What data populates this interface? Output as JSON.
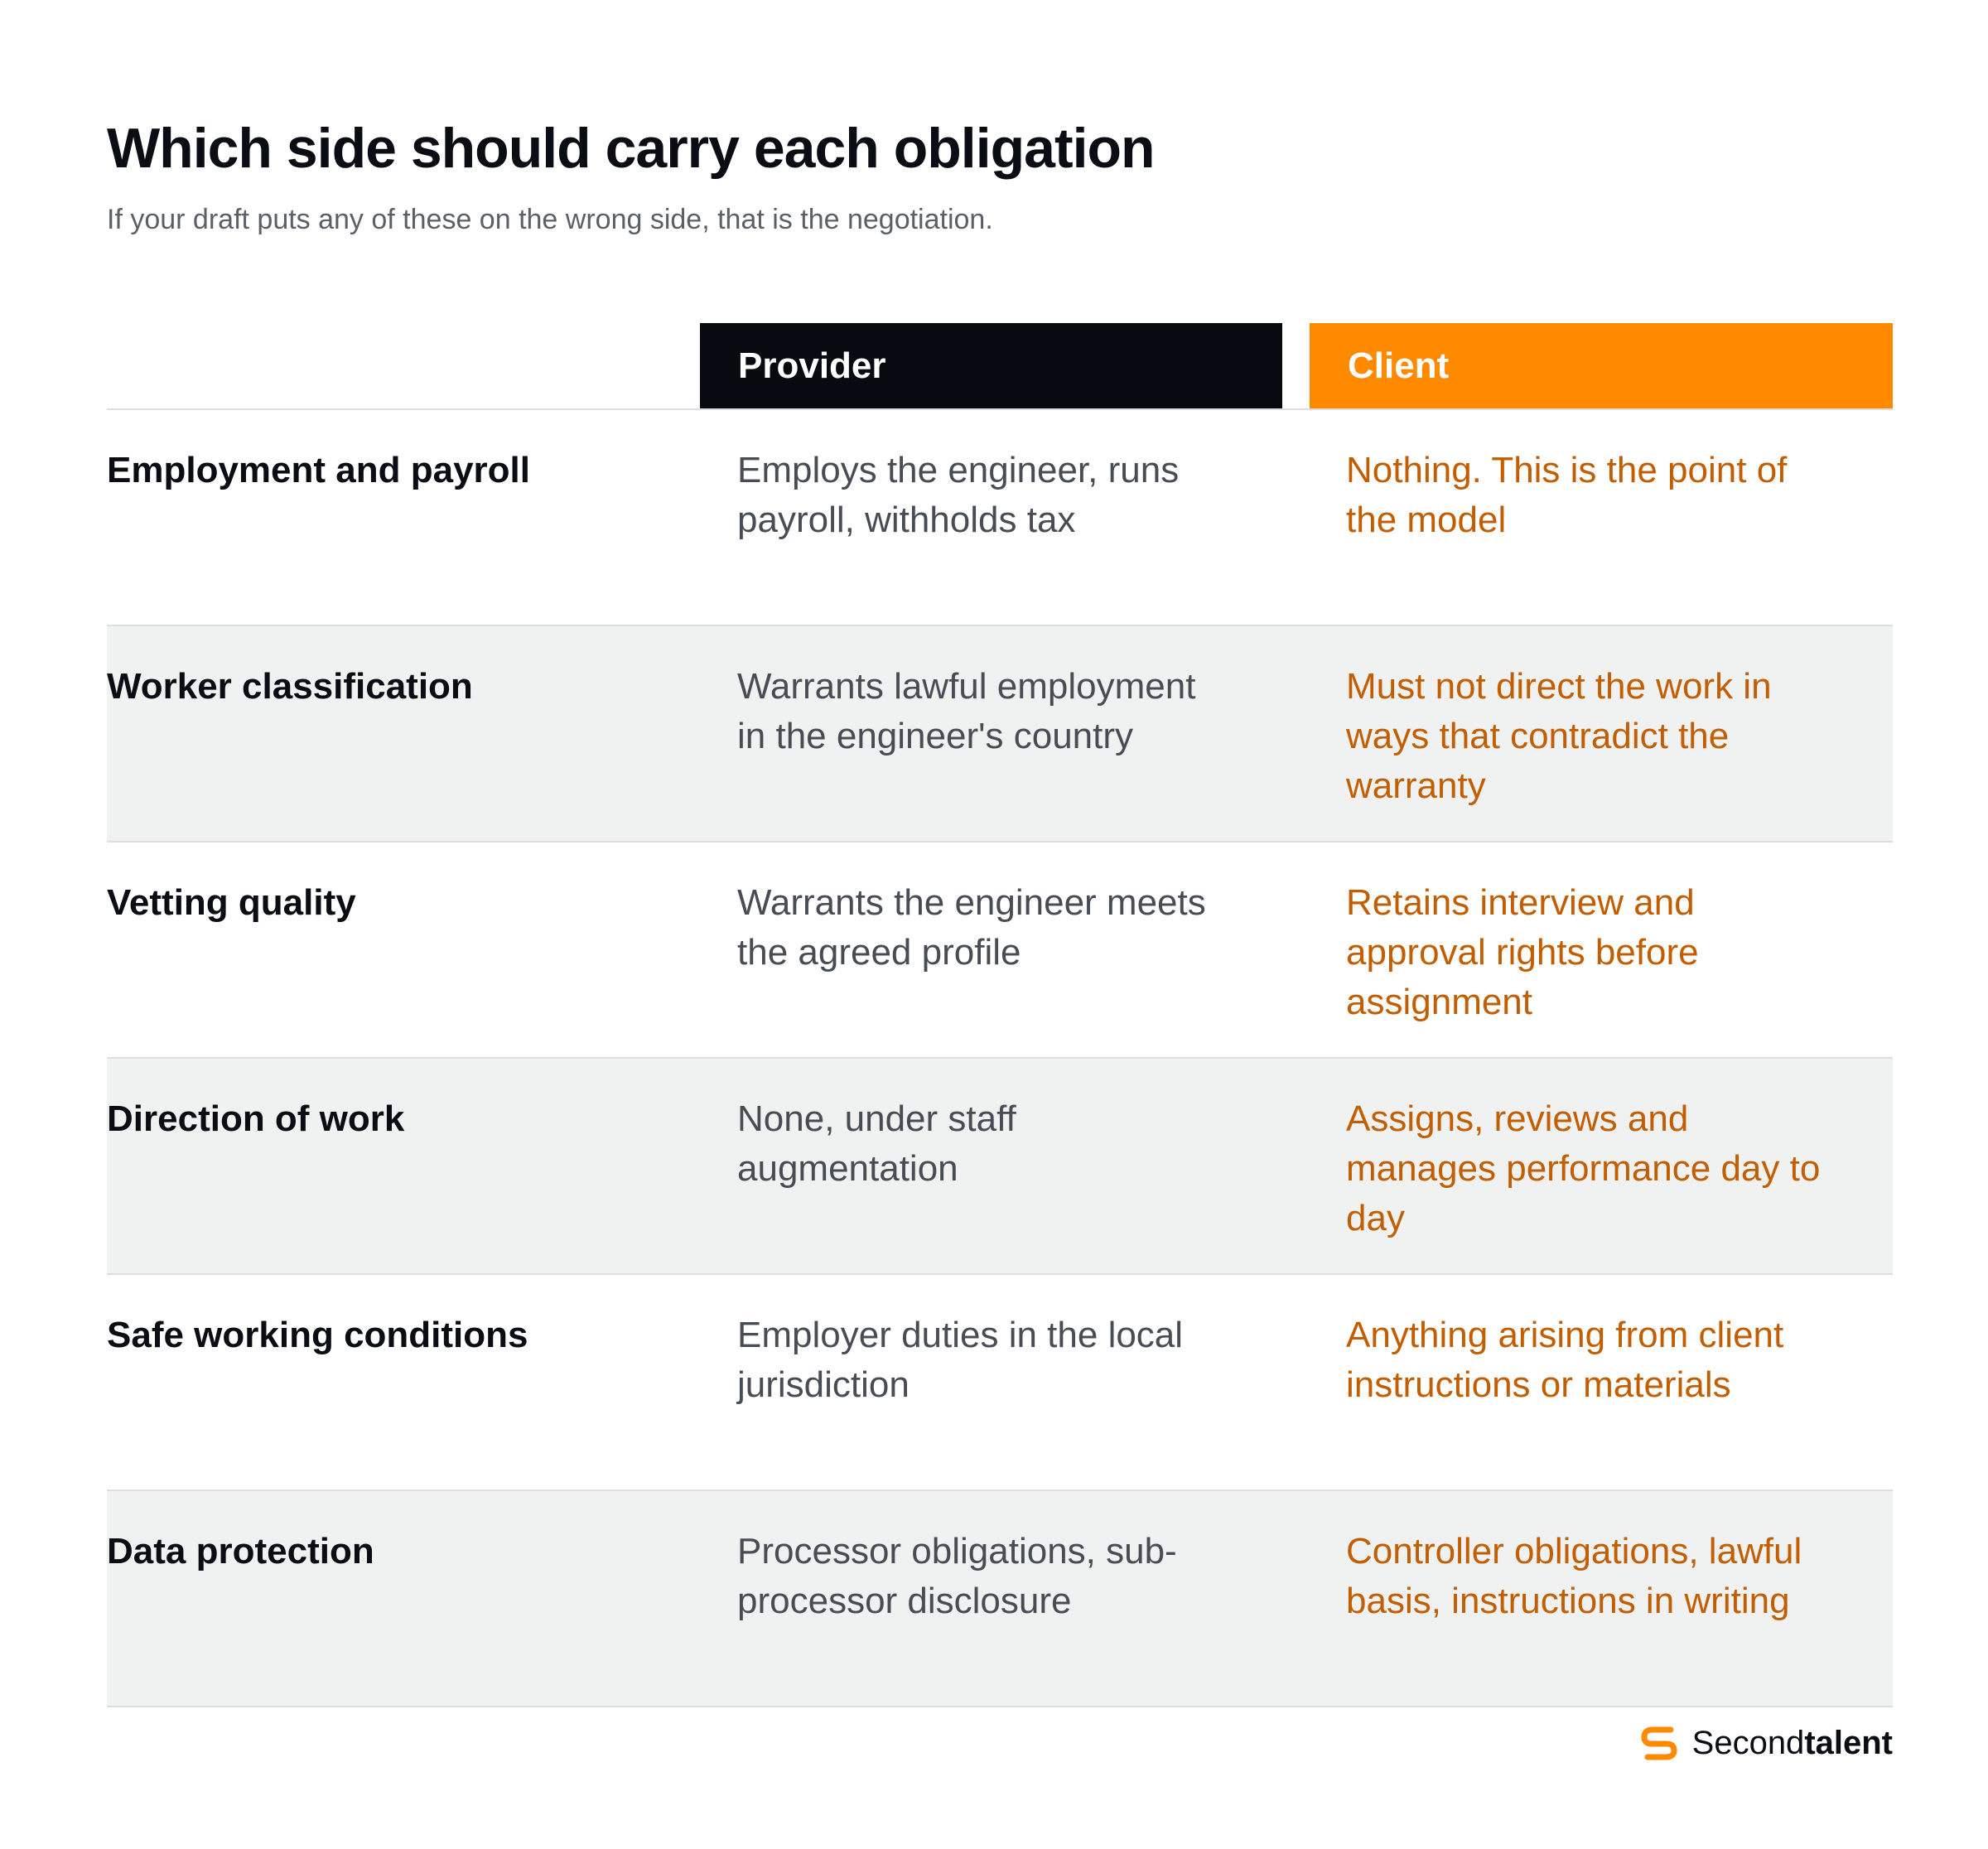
{
  "title": "Which side should carry each obligation",
  "subtitle": "If your draft puts any of these on the wrong side, that is the negotiation.",
  "columns": {
    "provider": "Provider",
    "client": "Client"
  },
  "rows": [
    {
      "label": "Employment and payroll",
      "provider": "Employs the engineer, runs payroll, withholds tax",
      "client": "Nothing. This is the point of the model"
    },
    {
      "label": "Worker classification",
      "provider": "Warrants lawful employment in the engineer's country",
      "client": "Must not direct the work in ways that contradict the warranty"
    },
    {
      "label": "Vetting quality",
      "provider": "Warrants the engineer meets the agreed profile",
      "client": "Retains interview and approval rights before assignment"
    },
    {
      "label": "Direction of work",
      "provider": "None, under staff augmentation",
      "client": "Assigns, reviews and manages performance day to day"
    },
    {
      "label": "Safe working conditions",
      "provider": "Employer duties in the local jurisdiction",
      "client": "Anything arising from client instructions or materials"
    },
    {
      "label": "Data protection",
      "provider": "Processor obligations, sub-processor disclosure",
      "client": "Controller obligations, lawful basis, instructions in writing"
    }
  ],
  "brand": {
    "name_regular": "Second",
    "name_bold": "talent",
    "icon": "secondtalent-s-logo-icon"
  },
  "colors": {
    "provider_header": "#080a12",
    "client_header": "#ff8a00",
    "client_text": "#c25e00",
    "provider_text": "#484d55",
    "row_shade": "#f0f1f1",
    "divider": "#dcdee1"
  }
}
